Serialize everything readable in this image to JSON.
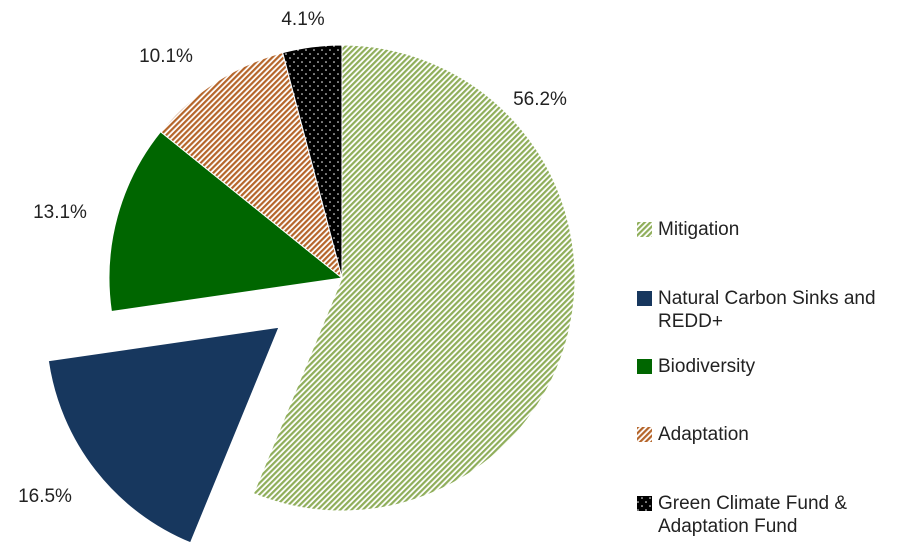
{
  "chart_data": {
    "type": "pie",
    "categories": [
      "Mitigation",
      "Natural Carbon Sinks and REDD+",
      "Biodiversity",
      "Adaptation",
      "Green Climate Fund & Adaptation Fund"
    ],
    "values": [
      56.2,
      16.5,
      13.1,
      10.1,
      4.1
    ],
    "value_labels": [
      "56.2%",
      "16.5%",
      "13.1%",
      "10.1%",
      "4.1%"
    ],
    "colors": [
      "#8fae5a",
      "#17375e",
      "#006600",
      "#b5652a",
      "#000000"
    ],
    "fills": [
      "hatch",
      "solid",
      "solid",
      "hatch",
      "dots"
    ],
    "explode": [
      false,
      true,
      false,
      false,
      false
    ],
    "legend": "right"
  }
}
